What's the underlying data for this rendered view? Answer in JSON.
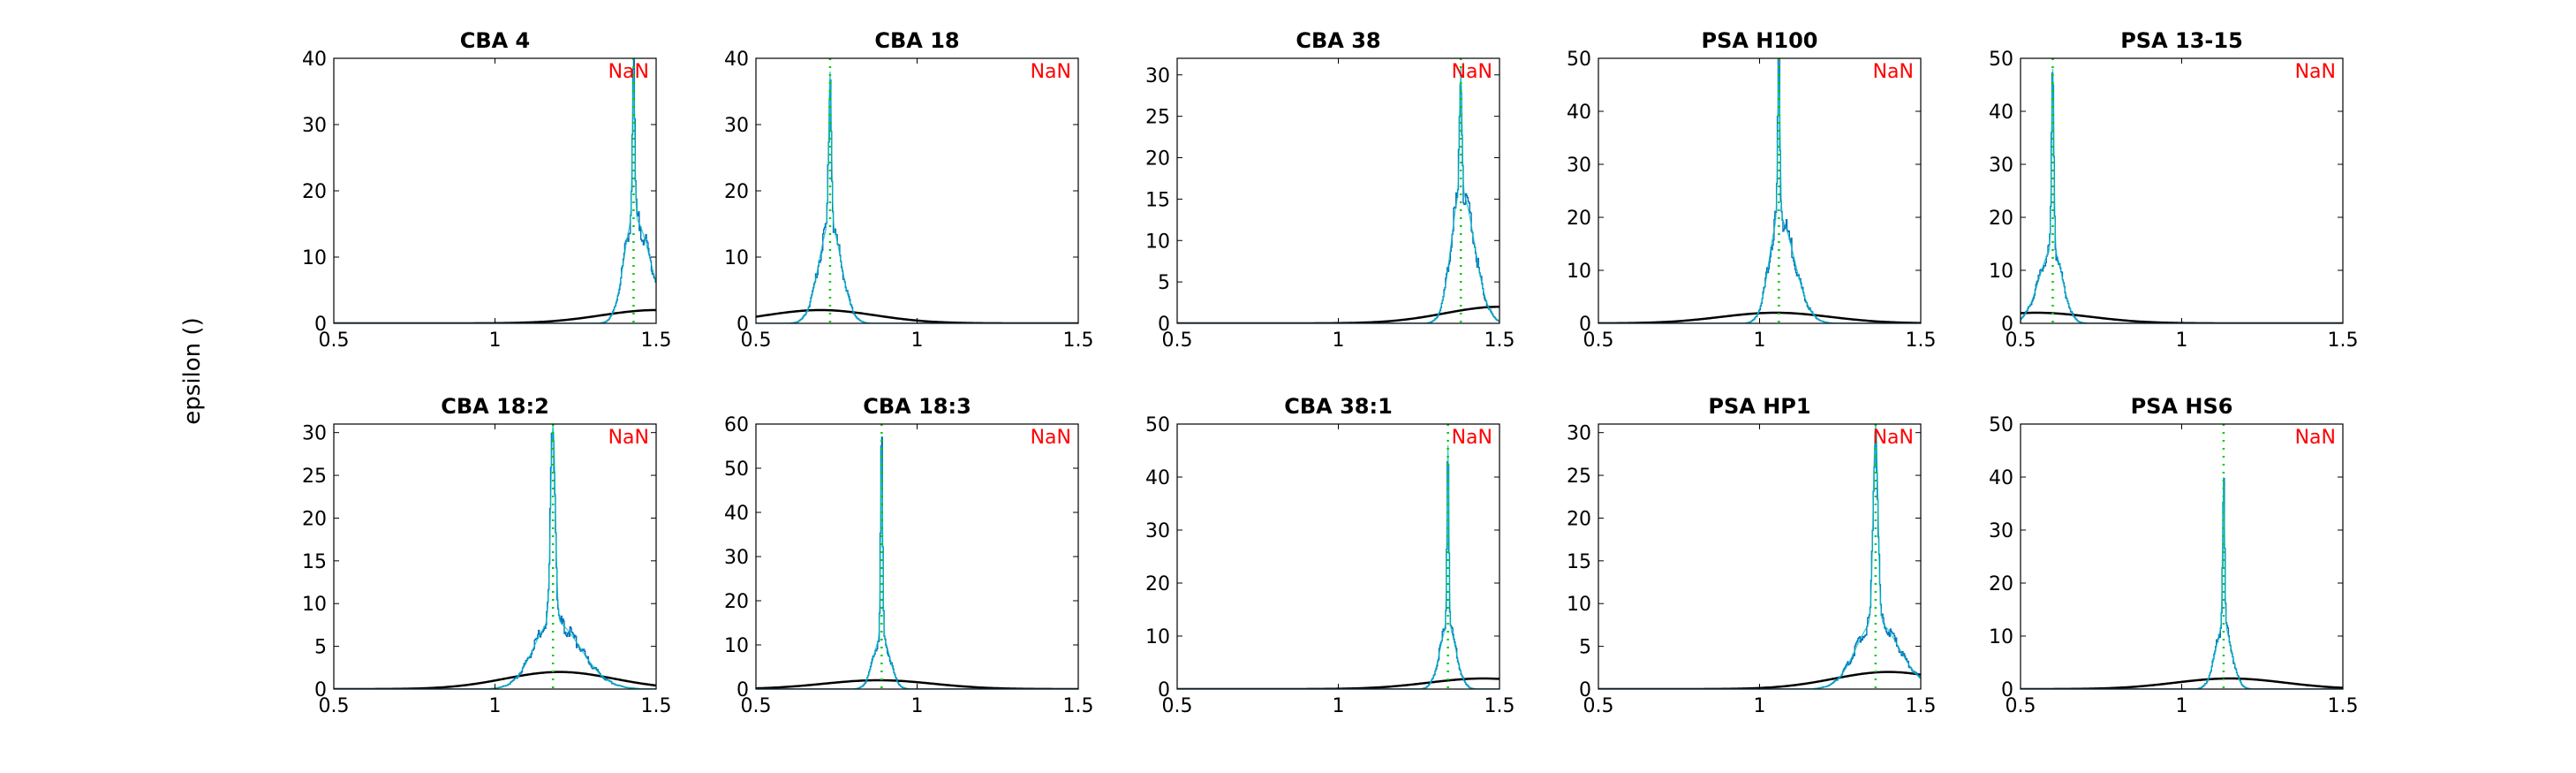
{
  "figure": {
    "ylabel": "epsilon ()",
    "colors": {
      "histogram": "#0072bd",
      "fitted_curve": "#00bfbf",
      "marker_line": "#00cc00",
      "prior": "#000000",
      "annotation": "#ff0000"
    }
  },
  "chart_data": [
    {
      "type": "line",
      "title": "CBA 4",
      "annotation": "NaN",
      "xlim": [
        0.5,
        1.5
      ],
      "ylim": [
        0,
        40
      ],
      "xticks": [
        0.5,
        1,
        1.5
      ],
      "yticks": [
        0,
        10,
        20,
        30,
        40
      ],
      "peak_x": 1.43,
      "peak_height": 38,
      "shoulder_height": 16,
      "spread": 0.03,
      "skew": 0.35,
      "prior_mean": 1.5,
      "prior_peak": 2
    },
    {
      "type": "line",
      "title": "CBA 18",
      "annotation": "NaN",
      "xlim": [
        0.5,
        1.5
      ],
      "ylim": [
        0,
        40
      ],
      "xticks": [
        0.5,
        1,
        1.5
      ],
      "yticks": [
        0,
        10,
        20,
        30,
        40
      ],
      "peak_x": 0.73,
      "peak_height": 38,
      "shoulder_height": 15,
      "spread": 0.035,
      "skew": 0,
      "prior_mean": 0.7,
      "prior_peak": 2
    },
    {
      "type": "line",
      "title": "CBA 38",
      "annotation": "NaN",
      "xlim": [
        0.5,
        1.5
      ],
      "ylim": [
        0,
        32
      ],
      "xticks": [
        0.5,
        1,
        1.5
      ],
      "yticks": [
        0,
        5,
        10,
        15,
        20,
        25,
        30
      ],
      "peak_x": 1.38,
      "peak_height": 31,
      "shoulder_height": 16,
      "spread": 0.03,
      "skew": 0.2,
      "prior_mean": 1.5,
      "prior_peak": 2
    },
    {
      "type": "line",
      "title": "PSA H100",
      "annotation": "NaN",
      "xlim": [
        0.5,
        1.5
      ],
      "ylim": [
        0,
        50
      ],
      "xticks": [
        0.5,
        1,
        1.5
      ],
      "yticks": [
        0,
        10,
        20,
        30,
        40,
        50
      ],
      "peak_x": 1.06,
      "peak_height": 48,
      "shoulder_height": 20,
      "spread": 0.03,
      "skew": 0.3,
      "prior_mean": 1.05,
      "prior_peak": 2
    },
    {
      "type": "line",
      "title": "PSA 13-15",
      "annotation": "NaN",
      "xlim": [
        0.5,
        1.5
      ],
      "ylim": [
        0,
        50
      ],
      "xticks": [
        0.5,
        1,
        1.5
      ],
      "yticks": [
        0,
        10,
        20,
        30,
        40,
        50
      ],
      "peak_x": 0.6,
      "peak_height": 48,
      "shoulder_height": 14,
      "spread": 0.03,
      "skew": -0.2,
      "prior_mean": 0.55,
      "prior_peak": 2
    },
    {
      "type": "line",
      "title": "CBA 18:2",
      "annotation": "NaN",
      "xlim": [
        0.5,
        1.5
      ],
      "ylim": [
        0,
        31
      ],
      "xticks": [
        0.5,
        1,
        1.5
      ],
      "yticks": [
        0,
        5,
        10,
        15,
        20,
        25,
        30
      ],
      "peak_x": 1.18,
      "peak_height": 31,
      "shoulder_height": 8,
      "spread": 0.06,
      "skew": 0.2,
      "prior_mean": 1.2,
      "prior_peak": 2
    },
    {
      "type": "line",
      "title": "CBA 18:3",
      "annotation": "NaN",
      "xlim": [
        0.5,
        1.5
      ],
      "ylim": [
        0,
        60
      ],
      "xticks": [
        0.5,
        1,
        1.5
      ],
      "yticks": [
        0,
        10,
        20,
        30,
        40,
        50,
        60
      ],
      "peak_x": 0.89,
      "peak_height": 55,
      "shoulder_height": 12,
      "spread": 0.025,
      "skew": 0,
      "prior_mean": 0.88,
      "prior_peak": 2
    },
    {
      "type": "line",
      "title": "CBA 38:1",
      "annotation": "NaN",
      "xlim": [
        0.5,
        1.5
      ],
      "ylim": [
        0,
        50
      ],
      "xticks": [
        0.5,
        1,
        1.5
      ],
      "yticks": [
        0,
        10,
        20,
        30,
        40,
        50
      ],
      "peak_x": 1.34,
      "peak_height": 46,
      "shoulder_height": 12,
      "spread": 0.025,
      "skew": 0,
      "prior_mean": 1.45,
      "prior_peak": 2
    },
    {
      "type": "line",
      "title": "PSA HP1",
      "annotation": "NaN",
      "xlim": [
        0.5,
        1.5
      ],
      "ylim": [
        0,
        31
      ],
      "xticks": [
        0.5,
        1,
        1.5
      ],
      "yticks": [
        0,
        5,
        10,
        15,
        20,
        25,
        30
      ],
      "peak_x": 1.36,
      "peak_height": 31,
      "shoulder_height": 8,
      "spread": 0.06,
      "skew": 0.1,
      "prior_mean": 1.4,
      "prior_peak": 2
    },
    {
      "type": "line",
      "title": "PSA HS6",
      "annotation": "NaN",
      "xlim": [
        0.5,
        1.5
      ],
      "ylim": [
        0,
        50
      ],
      "xticks": [
        0.5,
        1,
        1.5
      ],
      "yticks": [
        0,
        10,
        20,
        30,
        40,
        50
      ],
      "peak_x": 1.13,
      "peak_height": 40,
      "shoulder_height": 12,
      "spread": 0.025,
      "skew": 0,
      "prior_mean": 1.15,
      "prior_peak": 2
    }
  ]
}
